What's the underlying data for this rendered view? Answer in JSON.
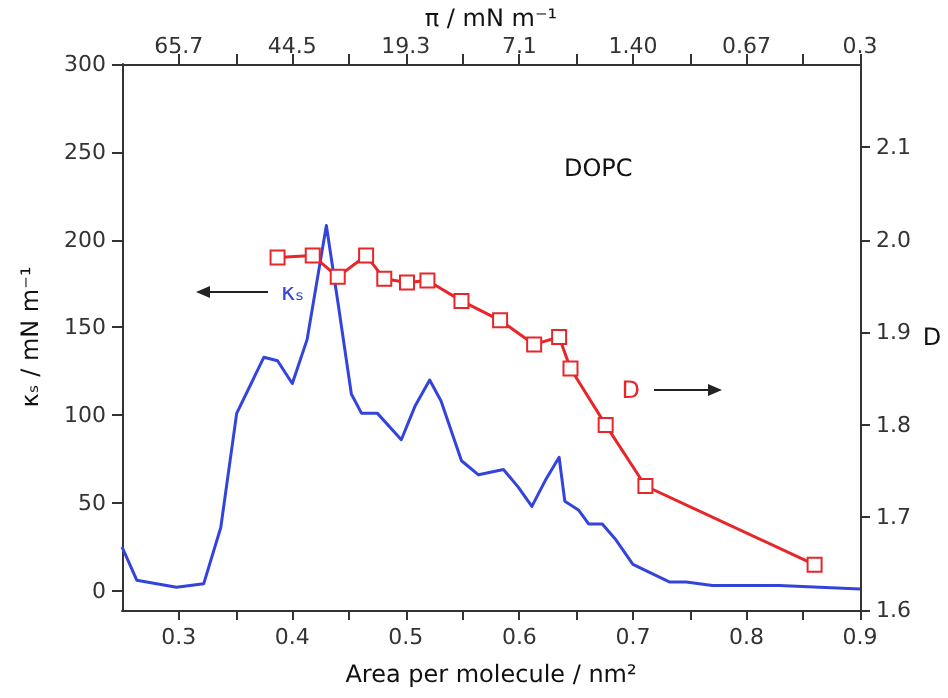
{
  "chart_data": {
    "type": "line",
    "xlabel": "Area per molecule / nm²",
    "ylabel": "κₛ / mN m⁻¹",
    "y2label": "D",
    "x2label": "π / mN m⁻¹",
    "annotations": [
      "DOPC",
      "65.7",
      "44.5",
      "19.3",
      "7.1",
      "1.40",
      "0.67",
      "0.3"
    ],
    "series": [
      {
        "name": "κₛ",
        "color": "#3344dd",
        "marker": "none",
        "x": [
          0.25,
          0.263,
          0.298,
          0.322,
          0.337,
          0.351,
          0.375,
          0.387,
          0.4,
          0.413,
          0.43,
          0.44,
          0.452,
          0.461,
          0.475,
          0.496,
          0.508,
          0.521,
          0.531,
          0.549,
          0.564,
          0.586,
          0.599,
          0.611,
          0.623,
          0.635,
          0.64,
          0.652,
          0.661,
          0.673,
          0.685,
          0.7,
          0.732,
          0.747,
          0.77,
          0.829,
          0.9
        ],
        "values": [
          25,
          6,
          2,
          4,
          36,
          101,
          133,
          131,
          118,
          143,
          208,
          165,
          112,
          101,
          101,
          86,
          105,
          120,
          108,
          74,
          66,
          69,
          59,
          48,
          63,
          76,
          51,
          46,
          38,
          38,
          29,
          15,
          5,
          5,
          3,
          3,
          1
        ]
      },
      {
        "name": "D",
        "color": "#e8262a",
        "marker": "square",
        "axis": "y2",
        "x": [
          0.387,
          0.418,
          0.44,
          0.465,
          0.481,
          0.501,
          0.519,
          0.549,
          0.583,
          0.613,
          0.635,
          0.645,
          0.676,
          0.711,
          0.86
        ],
        "values": [
          1.981,
          1.983,
          1.96,
          1.983,
          1.958,
          1.954,
          1.956,
          1.934,
          1.913,
          1.887,
          1.895,
          1.861,
          1.8,
          1.734,
          1.649
        ]
      }
    ],
    "xlim": [
      0.25,
      0.9
    ],
    "xticks": [
      0.3,
      {
        "value": 0.35,
        "label": null
      },
      0.4,
      {
        "value": 0.45,
        "label": null
      },
      0.5,
      {
        "value": 0.55,
        "label": null
      },
      0.6,
      {
        "value": 0.65,
        "label": null
      },
      0.7,
      {
        "value": 0.75,
        "label": null
      },
      0.8,
      {
        "value": 0.85,
        "label": null
      },
      0.9
    ],
    "ylim": [
      -11,
      300
    ],
    "yticks": [
      0,
      50,
      100,
      150,
      200,
      250,
      300
    ],
    "y2lim": [
      1.6,
      2.19
    ],
    "y2ticks": [
      1.6,
      1.7,
      1.8,
      1.9,
      {
        "value": 2,
        "label": "2.0"
      },
      2.1
    ],
    "grid": false,
    "legend": false
  }
}
